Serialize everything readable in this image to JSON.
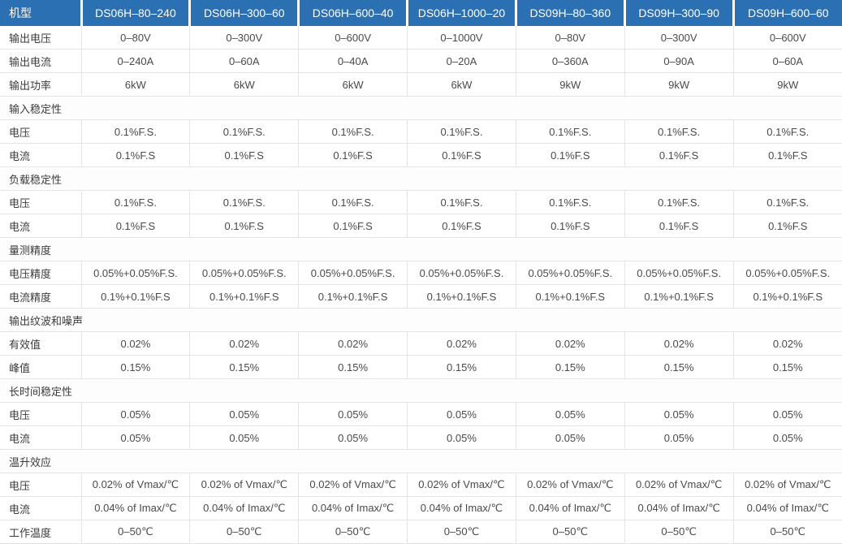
{
  "colors": {
    "header_bg": "#2b70b2",
    "header_text": "#ffffff",
    "row_border": "#e4e4e4",
    "label_text": "#3c3c3c",
    "value_text": "#4a4a4a"
  },
  "table": {
    "header": {
      "model_label": "机型",
      "models": [
        "DS06H–80–240",
        "DS06H–300–60",
        "DS06H–600–40",
        "DS06H–1000–20",
        "DS09H–80–360",
        "DS09H–300–90",
        "DS09H–600–60"
      ]
    },
    "rows": [
      {
        "type": "data",
        "label": "输出电压",
        "values": [
          "0–80V",
          "0–300V",
          "0–600V",
          "0–1000V",
          "0–80V",
          "0–300V",
          "0–600V"
        ]
      },
      {
        "type": "data",
        "label": "输出电流",
        "values": [
          "0–240A",
          "0–60A",
          "0–40A",
          "0–20A",
          "0–360A",
          "0–90A",
          "0–60A"
        ]
      },
      {
        "type": "data",
        "label": "输出功率",
        "values": [
          "6kW",
          "6kW",
          "6kW",
          "6kW",
          "9kW",
          "9kW",
          "9kW"
        ]
      },
      {
        "type": "section",
        "label": "输入稳定性"
      },
      {
        "type": "data",
        "label": "电压",
        "values": [
          "0.1%F.S.",
          "0.1%F.S.",
          "0.1%F.S.",
          "0.1%F.S.",
          "0.1%F.S.",
          "0.1%F.S.",
          "0.1%F.S."
        ]
      },
      {
        "type": "data",
        "label": "电流",
        "values": [
          "0.1%F.S",
          "0.1%F.S",
          "0.1%F.S",
          "0.1%F.S",
          "0.1%F.S",
          "0.1%F.S",
          "0.1%F.S"
        ]
      },
      {
        "type": "section",
        "label": "负载稳定性"
      },
      {
        "type": "data",
        "label": "电压",
        "values": [
          "0.1%F.S.",
          "0.1%F.S.",
          "0.1%F.S.",
          "0.1%F.S.",
          "0.1%F.S.",
          "0.1%F.S.",
          "0.1%F.S."
        ]
      },
      {
        "type": "data",
        "label": "电流",
        "values": [
          "0.1%F.S",
          "0.1%F.S",
          "0.1%F.S",
          "0.1%F.S",
          "0.1%F.S",
          "0.1%F.S",
          "0.1%F.S"
        ]
      },
      {
        "type": "section",
        "label": "量测精度"
      },
      {
        "type": "data",
        "label": "电压精度",
        "values": [
          "0.05%+0.05%F.S.",
          "0.05%+0.05%F.S.",
          "0.05%+0.05%F.S.",
          "0.05%+0.05%F.S.",
          "0.05%+0.05%F.S.",
          "0.05%+0.05%F.S.",
          "0.05%+0.05%F.S."
        ]
      },
      {
        "type": "data",
        "label": "电流精度",
        "values": [
          "0.1%+0.1%F.S",
          "0.1%+0.1%F.S",
          "0.1%+0.1%F.S",
          "0.1%+0.1%F.S",
          "0.1%+0.1%F.S",
          "0.1%+0.1%F.S",
          "0.1%+0.1%F.S"
        ]
      },
      {
        "type": "section",
        "label": "输出纹波和噪声"
      },
      {
        "type": "data",
        "label": "有效值",
        "values": [
          "0.02%",
          "0.02%",
          "0.02%",
          "0.02%",
          "0.02%",
          "0.02%",
          "0.02%"
        ]
      },
      {
        "type": "data",
        "label": "峰值",
        "values": [
          "0.15%",
          "0.15%",
          "0.15%",
          "0.15%",
          "0.15%",
          "0.15%",
          "0.15%"
        ]
      },
      {
        "type": "section",
        "label": "长时间稳定性"
      },
      {
        "type": "data",
        "label": "电压",
        "values": [
          "0.05%",
          "0.05%",
          "0.05%",
          "0.05%",
          "0.05%",
          "0.05%",
          "0.05%"
        ]
      },
      {
        "type": "data",
        "label": "电流",
        "values": [
          "0.05%",
          "0.05%",
          "0.05%",
          "0.05%",
          "0.05%",
          "0.05%",
          "0.05%"
        ]
      },
      {
        "type": "section",
        "label": "温升效应"
      },
      {
        "type": "data",
        "label": "电压",
        "values": [
          "0.02% of Vmax/℃",
          "0.02% of Vmax/℃",
          "0.02% of Vmax/℃",
          "0.02% of Vmax/℃",
          "0.02% of Vmax/℃",
          "0.02% of Vmax/℃",
          "0.02% of Vmax/℃"
        ]
      },
      {
        "type": "data",
        "label": "电流",
        "values": [
          "0.04% of Imax/℃",
          "0.04% of Imax/℃",
          "0.04% of Imax/℃",
          "0.04% of Imax/℃",
          "0.04% of Imax/℃",
          "0.04% of Imax/℃",
          "0.04% of Imax/℃"
        ]
      },
      {
        "type": "data",
        "label": "工作温度",
        "values": [
          "0–50℃",
          "0–50℃",
          "0–50℃",
          "0–50℃",
          "0–50℃",
          "0–50℃",
          "0–50℃"
        ]
      }
    ]
  }
}
